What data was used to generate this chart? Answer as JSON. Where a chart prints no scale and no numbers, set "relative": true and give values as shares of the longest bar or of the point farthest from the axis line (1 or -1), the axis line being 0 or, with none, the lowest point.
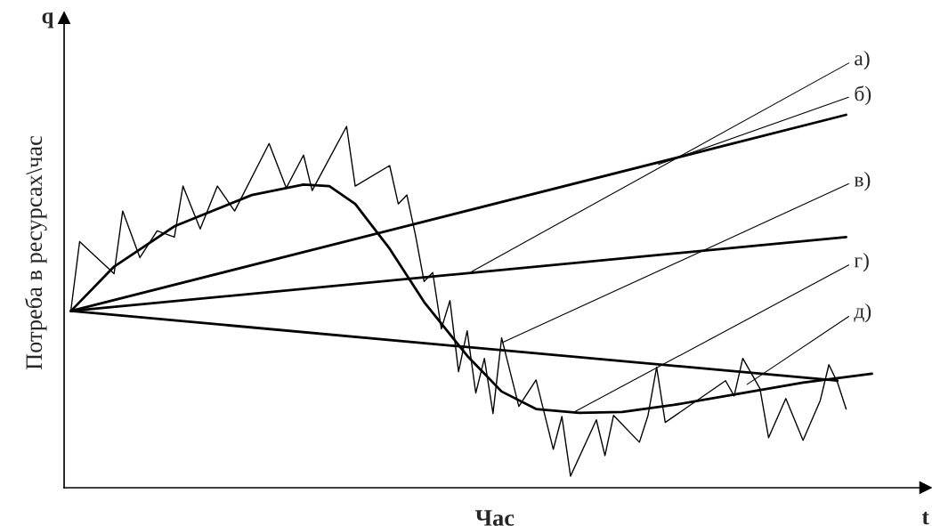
{
  "chart_data": {
    "type": "line",
    "relative": true,
    "xlabel": "Час",
    "ylabel": "Потреба в ресурсах\\час",
    "marker": "none",
    "line_style": "solid",
    "categories": [
      null,
      null,
      null,
      null,
      null,
      null,
      null,
      null,
      null,
      null,
      null,
      null,
      null,
      null,
      null,
      null,
      null,
      null,
      null,
      null,
      null,
      null,
      null,
      null,
      null,
      null,
      null,
      null,
      null,
      null,
      null,
      null,
      null,
      null,
      null,
      null,
      null,
      null,
      null,
      null,
      null,
      null,
      null,
      null,
      null,
      null,
      null,
      null,
      null,
      null,
      null,
      null,
      null,
      null,
      null,
      null,
      null,
      null,
      null,
      null,
      null,
      null,
      null,
      null,
      null,
      null,
      null,
      null,
      null,
      null,
      null,
      null,
      null,
      null,
      null,
      null,
      null,
      null,
      null,
      null,
      null,
      null,
      null,
      null,
      null,
      null,
      null,
      null,
      null,
      null,
      null,
      null,
      null,
      null
    ],
    "series": [
      {
        "color": "#000000",
        "values": [
          0.474,
          null,
          null,
          null,
          null,
          null,
          null,
          null,
          null,
          null,
          null,
          null,
          null,
          null,
          null,
          null,
          null,
          null,
          null,
          null,
          null,
          null,
          null,
          null,
          null,
          null,
          null,
          null,
          null,
          null,
          null,
          null,
          null,
          null,
          null,
          null,
          null,
          null,
          null,
          null,
          null,
          null,
          null,
          null,
          null,
          null,
          null,
          null,
          null,
          null,
          null,
          null,
          null,
          null,
          null,
          null,
          null,
          null,
          null,
          null,
          null,
          null,
          null,
          null,
          null,
          null,
          null,
          null,
          null,
          null,
          null,
          null,
          null,
          null,
          null,
          null,
          null,
          null,
          null,
          null,
          null,
          null,
          null,
          null,
          null,
          null,
          null,
          null,
          null,
          null,
          1.0,
          null,
          null,
          null
        ]
      },
      {
        "color": "#000000",
        "values": [
          0.474,
          null,
          null,
          null,
          null,
          null,
          null,
          null,
          null,
          null,
          null,
          null,
          null,
          null,
          null,
          null,
          null,
          null,
          null,
          null,
          null,
          null,
          null,
          null,
          null,
          null,
          null,
          null,
          null,
          null,
          null,
          null,
          null,
          null,
          null,
          null,
          null,
          null,
          null,
          null,
          null,
          null,
          null,
          null,
          null,
          null,
          null,
          null,
          null,
          null,
          null,
          null,
          null,
          null,
          null,
          null,
          null,
          null,
          null,
          null,
          null,
          null,
          null,
          null,
          null,
          null,
          null,
          null,
          null,
          null,
          null,
          null,
          null,
          null,
          null,
          null,
          null,
          null,
          null,
          null,
          null,
          null,
          null,
          null,
          null,
          null,
          null,
          null,
          null,
          null,
          0.672,
          null,
          null,
          null
        ]
      },
      {
        "color": "#000000",
        "values": [
          0.474,
          null,
          null,
          null,
          null,
          null,
          null,
          null,
          null,
          null,
          null,
          null,
          null,
          null,
          null,
          null,
          null,
          null,
          null,
          null,
          null,
          null,
          null,
          null,
          null,
          null,
          null,
          null,
          null,
          null,
          null,
          null,
          null,
          null,
          null,
          null,
          null,
          null,
          null,
          null,
          null,
          null,
          null,
          null,
          null,
          null,
          null,
          null,
          null,
          null,
          null,
          null,
          null,
          null,
          null,
          null,
          null,
          null,
          null,
          null,
          null,
          null,
          null,
          null,
          null,
          null,
          null,
          null,
          null,
          null,
          null,
          null,
          null,
          null,
          null,
          null,
          null,
          null,
          null,
          null,
          null,
          null,
          null,
          null,
          null,
          null,
          null,
          null,
          null,
          0.287,
          null,
          null,
          null,
          null
        ]
      },
      {
        "color": "#000000",
        "values": [
          0.474,
          null,
          null,
          null,
          null,
          0.593,
          null,
          null,
          null,
          null,
          null,
          null,
          0.701,
          null,
          null,
          null,
          null,
          null,
          null,
          null,
          null,
          0.785,
          null,
          null,
          null,
          null,
          null,
          0.813,
          null,
          null,
          0.809,
          null,
          null,
          0.761,
          null,
          null,
          null,
          0.641,
          null,
          null,
          null,
          0.498,
          null,
          null,
          null,
          null,
          0.354,
          null,
          null,
          null,
          0.258,
          null,
          null,
          null,
          0.211,
          null,
          null,
          null,
          null,
          0.201,
          null,
          null,
          null,
          null,
          0.203,
          null,
          null,
          null,
          null,
          null,
          0.222,
          null,
          null,
          null,
          null,
          null,
          null,
          null,
          0.254,
          null,
          null,
          null,
          null,
          null,
          null,
          0.282,
          null,
          null,
          null,
          null,
          null,
          null,
          null,
          0.306
        ]
      },
      {
        "color": "#000000",
        "values": [
          0.478,
          0.66,
          null,
          null,
          null,
          0.574,
          0.742,
          null,
          0.617,
          null,
          0.689,
          null,
          0.672,
          0.809,
          null,
          0.694,
          null,
          0.809,
          null,
          0.742,
          null,
          null,
          null,
          0.923,
          null,
          0.804,
          null,
          0.892,
          0.797,
          null,
          null,
          null,
          0.969,
          0.809,
          null,
          null,
          null,
          0.864,
          0.761,
          0.785,
          0.677,
          0.553,
          0.577,
          0.426,
          0.502,
          0.311,
          0.421,
          0.254,
          0.347,
          0.199,
          0.402,
          null,
          0.218,
          null,
          0.289,
          null,
          0.103,
          0.191,
          0.031,
          null,
          null,
          0.182,
          0.086,
          0.194,
          null,
          null,
          0.122,
          0.194,
          0.323,
          0.175,
          null,
          null,
          null,
          null,
          null,
          null,
          0.287,
          0.246,
          0.347,
          null,
          0.266,
          0.134,
          null,
          0.239,
          null,
          0.127,
          null,
          0.234,
          0.33,
          0.282,
          0.211,
          null,
          null,
          null
        ]
      }
    ],
    "annotations": [
      "q",
      "t",
      "а)",
      "б)",
      "в)",
      "г)",
      "д)"
    ]
  }
}
